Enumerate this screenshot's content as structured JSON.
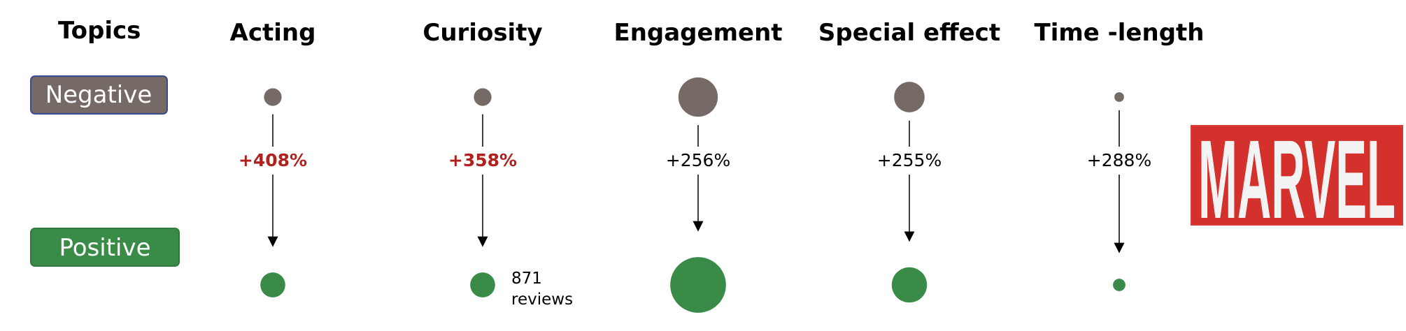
{
  "topics_label": "Topics",
  "rows": {
    "negative": {
      "label": "Negative",
      "fill": "#766a67",
      "stroke": "#3a4c8f"
    },
    "positive": {
      "label": "Positive",
      "fill": "#3a8b48",
      "stroke": "#2f7a3c"
    }
  },
  "colors": {
    "highlight_change": "#b1201c",
    "normal_change": "#000000"
  },
  "topics": [
    {
      "name": "Acting",
      "negative_size": 1,
      "positive_size": 2,
      "change": "+408%",
      "highlight": true
    },
    {
      "name": "Curiosity",
      "negative_size": 1,
      "positive_size": 2,
      "change": "+358%",
      "highlight": true
    },
    {
      "name": "Engagement",
      "negative_size": 5,
      "positive_size": 10,
      "change": "+256%",
      "highlight": false
    },
    {
      "name": "Special effect",
      "negative_size": 3,
      "positive_size": 4,
      "change": "+255%",
      "highlight": false
    },
    {
      "name": "Time -length",
      "negative_size": 0.3,
      "positive_size": 0.5,
      "change": "+288%",
      "highlight": false
    }
  ],
  "legend": {
    "count": "871",
    "unit": "reviews"
  },
  "logo": {
    "text": "MARVEL",
    "background": "#d4302c",
    "letter_color": "#f3f3f3",
    "border": "#d83a36"
  }
}
